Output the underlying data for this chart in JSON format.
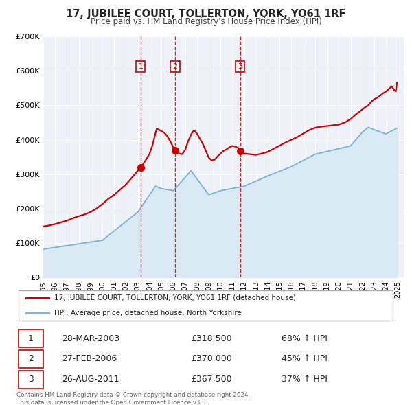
{
  "title": "17, JUBILEE COURT, TOLLERTON, YORK, YO61 1RF",
  "subtitle": "Price paid vs. HM Land Registry's House Price Index (HPI)",
  "legend_label_red": "17, JUBILEE COURT, TOLLERTON, YORK, YO61 1RF (detached house)",
  "legend_label_blue": "HPI: Average price, detached house, North Yorkshire",
  "red_color": "#cc0000",
  "blue_color": "#7eb5d6",
  "blue_fill_color": "#daeaf5",
  "background_color": "#eef2f8",
  "footnote": "Contains HM Land Registry data © Crown copyright and database right 2024.\nThis data is licensed under the Open Government Licence v3.0.",
  "sales": [
    {
      "num": 1,
      "date_num": 2003.24,
      "price": 318500,
      "label": "28-MAR-2003",
      "pct": "68% ↑ HPI"
    },
    {
      "num": 2,
      "date_num": 2006.16,
      "price": 370000,
      "label": "27-FEB-2006",
      "pct": "45% ↑ HPI"
    },
    {
      "num": 3,
      "date_num": 2011.65,
      "price": 367500,
      "label": "26-AUG-2011",
      "pct": "37% ↑ HPI"
    }
  ],
  "ylim": [
    0,
    700000
  ],
  "xlim_start": 1995.0,
  "xlim_end": 2025.5,
  "ytick_values": [
    0,
    100000,
    200000,
    300000,
    400000,
    500000,
    600000,
    700000
  ],
  "ytick_labels": [
    "£0",
    "£100K",
    "£200K",
    "£300K",
    "£400K",
    "£500K",
    "£600K",
    "£700K"
  ]
}
